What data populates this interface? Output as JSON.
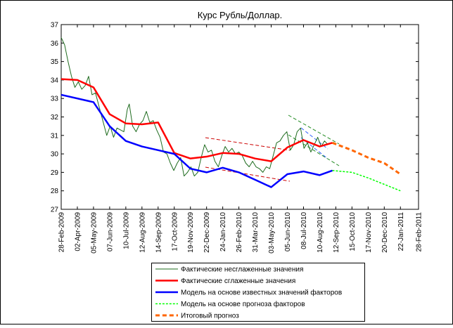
{
  "chart_data": {
    "type": "line",
    "title": "Курс Рубль/Доллар.",
    "xlim": [
      "2009-02-28",
      "2011-02-28"
    ],
    "xticks": [
      {
        "value": "2009-02-28",
        "label": "28-Feb-2009"
      },
      {
        "value": "2009-04-02",
        "label": "02-Apr-2009"
      },
      {
        "value": "2009-05-05",
        "label": "05-May-2009"
      },
      {
        "value": "2009-06-07",
        "label": "07-Jun-2009"
      },
      {
        "value": "2009-07-10",
        "label": "10-Jul-2009"
      },
      {
        "value": "2009-08-12",
        "label": "12-Aug-2009"
      },
      {
        "value": "2009-09-14",
        "label": "14-Sep-2009"
      },
      {
        "value": "2009-10-17",
        "label": "17-Oct-2009"
      },
      {
        "value": "2009-11-19",
        "label": "19-Nov-2009"
      },
      {
        "value": "2009-12-22",
        "label": "22-Dec-2009"
      },
      {
        "value": "2010-01-24",
        "label": "24-Jan-2010"
      },
      {
        "value": "2010-02-26",
        "label": "26-Feb-2010"
      },
      {
        "value": "2010-03-31",
        "label": "31-Mar-2010"
      },
      {
        "value": "2010-05-03",
        "label": "03-May-2010"
      },
      {
        "value": "2010-06-05",
        "label": "05-Jun-2010"
      },
      {
        "value": "2010-07-08",
        "label": "08-Jul-2010"
      },
      {
        "value": "2010-08-10",
        "label": "10-Aug-2010"
      },
      {
        "value": "2010-09-12",
        "label": "12-Sep-2010"
      },
      {
        "value": "2010-10-15",
        "label": "15-Oct-2010"
      },
      {
        "value": "2010-11-17",
        "label": "17-Nov-2010"
      },
      {
        "value": "2010-12-20",
        "label": "20-Dec-2010"
      },
      {
        "value": "2011-01-22",
        "label": "22-Jan-2011"
      },
      {
        "value": "2011-02-28",
        "label": "28-Feb-2011"
      }
    ],
    "ylim": [
      27,
      37
    ],
    "yticks": [
      27,
      28,
      29,
      30,
      31,
      32,
      33,
      34,
      35,
      36,
      37
    ],
    "series": [
      {
        "name": "Фактические несглаженные значения",
        "color": "#1e6b1e",
        "linewidth": 1,
        "linestyle": "solid",
        "x": [
          "2009-02-28",
          "2009-03-07",
          "2009-03-14",
          "2009-03-21",
          "2009-03-28",
          "2009-04-04",
          "2009-04-11",
          "2009-04-18",
          "2009-04-25",
          "2009-05-02",
          "2009-05-09",
          "2009-05-16",
          "2009-05-23",
          "2009-06-01",
          "2009-06-08",
          "2009-06-15",
          "2009-06-22",
          "2009-06-29",
          "2009-07-06",
          "2009-07-13",
          "2009-07-17",
          "2009-07-24",
          "2009-07-31",
          "2009-08-07",
          "2009-08-14",
          "2009-08-21",
          "2009-08-28",
          "2009-09-04",
          "2009-09-11",
          "2009-09-18",
          "2009-09-25",
          "2009-10-02",
          "2009-10-09",
          "2009-10-16",
          "2009-10-23",
          "2009-10-30",
          "2009-11-06",
          "2009-11-13",
          "2009-11-20",
          "2009-11-27",
          "2009-12-04",
          "2009-12-11",
          "2009-12-18",
          "2009-12-25",
          "2010-01-01",
          "2010-01-08",
          "2010-01-15",
          "2010-01-22",
          "2010-01-29",
          "2010-02-05",
          "2010-02-12",
          "2010-02-19",
          "2010-02-26",
          "2010-03-05",
          "2010-03-12",
          "2010-03-19",
          "2010-03-26",
          "2010-04-02",
          "2010-04-09",
          "2010-04-16",
          "2010-04-23",
          "2010-04-30",
          "2010-05-07",
          "2010-05-14",
          "2010-05-21",
          "2010-05-28",
          "2010-06-04",
          "2010-06-11",
          "2010-06-18",
          "2010-06-25",
          "2010-07-02",
          "2010-07-09",
          "2010-07-16",
          "2010-07-23",
          "2010-07-30",
          "2010-08-06",
          "2010-08-13",
          "2010-08-20",
          "2010-08-27"
        ],
        "values": [
          36.3,
          35.9,
          35.0,
          34.2,
          33.6,
          33.9,
          33.5,
          33.7,
          34.2,
          33.2,
          33.3,
          32.6,
          31.9,
          31.0,
          31.5,
          30.9,
          31.4,
          31.3,
          31.2,
          32.4,
          32.7,
          31.5,
          31.2,
          31.6,
          31.8,
          32.3,
          31.7,
          31.8,
          31.3,
          30.9,
          30.1,
          30.0,
          29.5,
          29.1,
          29.5,
          29.8,
          28.8,
          29.0,
          29.3,
          28.8,
          29.0,
          29.8,
          30.5,
          30.1,
          30.2,
          29.6,
          29.3,
          29.9,
          30.4,
          30.1,
          30.3,
          30.0,
          30.1,
          29.9,
          29.5,
          29.3,
          29.6,
          29.3,
          29.2,
          29.0,
          29.3,
          29.2,
          29.9,
          30.6,
          30.7,
          31.0,
          31.2,
          30.2,
          30.5,
          31.2,
          31.4,
          30.3,
          30.6,
          30.1,
          30.5,
          30.9,
          30.4,
          30.7,
          30.5
        ]
      },
      {
        "name": "Фактические сглаженные значения",
        "color": "#ff0000",
        "linewidth": 2.5,
        "linestyle": "solid",
        "x": [
          "2009-02-28",
          "2009-04-02",
          "2009-05-05",
          "2009-06-07",
          "2009-07-10",
          "2009-08-12",
          "2009-09-14",
          "2009-10-17",
          "2009-11-19",
          "2009-12-22",
          "2010-01-24",
          "2010-02-26",
          "2010-03-31",
          "2010-05-03",
          "2010-06-05",
          "2010-07-08",
          "2010-08-10",
          "2010-09-05"
        ],
        "values": [
          34.05,
          34.0,
          33.6,
          32.15,
          31.65,
          31.6,
          31.7,
          30.05,
          29.75,
          29.85,
          30.05,
          30.0,
          29.75,
          29.6,
          30.35,
          30.75,
          30.4,
          30.6
        ]
      },
      {
        "name": "Модель на основе известных значений факторов",
        "color": "#0000ff",
        "linewidth": 2.5,
        "linestyle": "solid",
        "x": [
          "2009-02-28",
          "2009-05-05",
          "2009-06-07",
          "2009-07-10",
          "2009-08-12",
          "2009-09-14",
          "2009-10-17",
          "2009-11-19",
          "2009-12-22",
          "2010-01-24",
          "2010-02-26",
          "2010-03-31",
          "2010-05-03",
          "2010-06-05",
          "2010-07-08",
          "2010-08-10",
          "2010-09-05"
        ],
        "values": [
          33.2,
          32.8,
          31.5,
          30.7,
          30.4,
          30.2,
          30.0,
          29.2,
          29.0,
          29.25,
          29.0,
          28.6,
          28.2,
          28.9,
          29.05,
          28.85,
          29.1
        ]
      },
      {
        "name": "Модель на основе прогноза факторов",
        "color": "#00ff00",
        "linewidth": 1.5,
        "linestyle": "dashed",
        "x": [
          "2010-09-05",
          "2010-10-15",
          "2010-11-17",
          "2010-12-20",
          "2011-01-22"
        ],
        "values": [
          29.1,
          29.0,
          28.7,
          28.35,
          28.0
        ]
      },
      {
        "name": "Итоговый прогноз",
        "color": "#ff6600",
        "linewidth": 3,
        "linestyle": "dashed",
        "x": [
          "2010-09-05",
          "2010-10-15",
          "2010-11-17",
          "2010-12-20",
          "2011-01-22"
        ],
        "values": [
          30.6,
          30.2,
          29.8,
          29.5,
          28.9
        ]
      }
    ]
  }
}
